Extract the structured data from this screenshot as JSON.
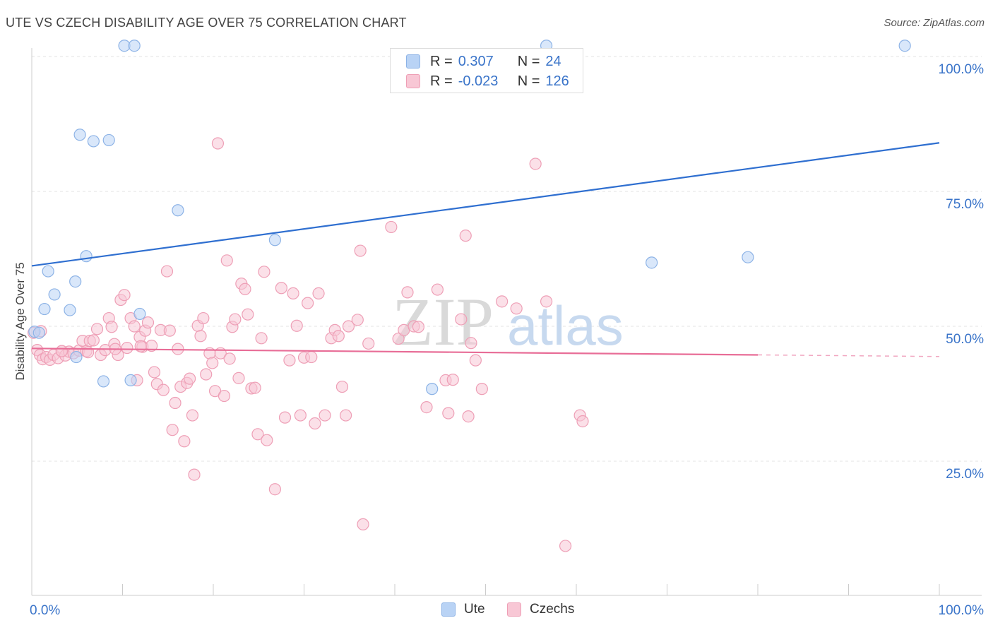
{
  "header": {
    "title": "UTE VS CZECH DISABILITY AGE OVER 75 CORRELATION CHART",
    "source": "Source: ZipAtlas.com"
  },
  "legend_top": {
    "r_label": "R =",
    "n_label": "N =",
    "ute": {
      "r": "0.307",
      "n": "24"
    },
    "czech": {
      "r": "-0.023",
      "n": "126"
    }
  },
  "legend_bottom": {
    "ute": "Ute",
    "czech": "Czechs"
  },
  "watermark": {
    "zip": "ZIP",
    "atlas": "atlas"
  },
  "colors": {
    "ute_fill": "#b9d3f5",
    "ute_stroke": "#8db3e6",
    "ute_line": "#2f6fd0",
    "czech_fill": "#f8c7d5",
    "czech_stroke": "#ee9fb6",
    "czech_line": "#e86d97",
    "axis_label": "#3a74c9",
    "grid": "#e3e3e3"
  },
  "chart_data": {
    "type": "scatter",
    "title": "UTE VS CZECH DISABILITY AGE OVER 75 CORRELATION CHART",
    "xlabel": "",
    "ylabel": "Disability Age Over 75",
    "xlim": [
      0,
      100
    ],
    "ylim": [
      0,
      102
    ],
    "x_tick_labels": [
      {
        "v": 0,
        "label": "0.0%"
      },
      {
        "v": 100,
        "label": "100.0%"
      }
    ],
    "y_tick_labels": [
      {
        "v": 25,
        "label": "25.0%"
      },
      {
        "v": 50,
        "label": "50.0%"
      },
      {
        "v": 75,
        "label": "75.0%"
      },
      {
        "v": 100,
        "label": "100.0%"
      }
    ],
    "grid": true,
    "series": [
      {
        "name": "Ute",
        "r": 0.307,
        "n": 24,
        "trend": {
          "x0": 0,
          "y0": 61.2,
          "x1": 100,
          "y1": 84.0
        },
        "points": [
          [
            10.2,
            102.0
          ],
          [
            11.3,
            102.0
          ],
          [
            56.7,
            102.0
          ],
          [
            96.2,
            102.0
          ],
          [
            5.3,
            85.5
          ],
          [
            6.8,
            84.3
          ],
          [
            8.5,
            84.5
          ],
          [
            16.1,
            71.5
          ],
          [
            26.8,
            66.0
          ],
          [
            6.0,
            63.0
          ],
          [
            1.8,
            60.2
          ],
          [
            4.8,
            58.3
          ],
          [
            2.5,
            55.9
          ],
          [
            1.4,
            53.2
          ],
          [
            4.2,
            53.0
          ],
          [
            11.9,
            52.3
          ],
          [
            0.3,
            49.0
          ],
          [
            0.8,
            48.8
          ],
          [
            4.9,
            44.3
          ],
          [
            7.9,
            39.8
          ],
          [
            10.9,
            40.0
          ],
          [
            44.1,
            38.4
          ],
          [
            68.3,
            61.8
          ],
          [
            78.9,
            62.8
          ]
        ]
      },
      {
        "name": "Czechs",
        "r": -0.023,
        "n": 126,
        "trend": {
          "x0": 0,
          "y0": 45.9,
          "x1": 80,
          "y1": 44.7
        },
        "trend_dashed": {
          "x0": 80,
          "y0": 44.7,
          "x1": 100,
          "y1": 44.4
        },
        "points": [
          [
            0.2,
            48.8
          ],
          [
            0.6,
            45.6
          ],
          [
            0.9,
            44.7
          ],
          [
            1.2,
            43.9
          ],
          [
            1.6,
            44.3
          ],
          [
            2.0,
            43.8
          ],
          [
            2.4,
            44.7
          ],
          [
            2.9,
            44.1
          ],
          [
            3.3,
            45.4
          ],
          [
            3.7,
            44.6
          ],
          [
            4.1,
            45.3
          ],
          [
            4.6,
            45.0
          ],
          [
            5.2,
            45.5
          ],
          [
            5.6,
            47.3
          ],
          [
            6.0,
            45.4
          ],
          [
            6.4,
            47.3
          ],
          [
            6.8,
            47.4
          ],
          [
            7.2,
            49.5
          ],
          [
            7.6,
            44.7
          ],
          [
            8.1,
            45.6
          ],
          [
            8.5,
            51.5
          ],
          [
            8.8,
            49.9
          ],
          [
            9.1,
            46.7
          ],
          [
            9.5,
            44.7
          ],
          [
            9.8,
            54.9
          ],
          [
            10.2,
            55.8
          ],
          [
            10.5,
            46.0
          ],
          [
            10.9,
            51.5
          ],
          [
            11.3,
            50.0
          ],
          [
            11.6,
            40.0
          ],
          [
            11.9,
            48.0
          ],
          [
            12.2,
            46.2
          ],
          [
            12.5,
            49.2
          ],
          [
            12.8,
            50.7
          ],
          [
            13.2,
            46.4
          ],
          [
            13.5,
            41.5
          ],
          [
            13.8,
            39.3
          ],
          [
            14.2,
            49.3
          ],
          [
            14.5,
            38.2
          ],
          [
            14.9,
            60.2
          ],
          [
            15.2,
            49.2
          ],
          [
            15.5,
            30.8
          ],
          [
            15.8,
            35.8
          ],
          [
            16.1,
            45.8
          ],
          [
            16.4,
            38.8
          ],
          [
            16.8,
            28.7
          ],
          [
            17.1,
            39.5
          ],
          [
            17.4,
            40.3
          ],
          [
            17.7,
            33.5
          ],
          [
            17.9,
            22.5
          ],
          [
            18.3,
            50.1
          ],
          [
            18.6,
            48.2
          ],
          [
            18.9,
            51.5
          ],
          [
            19.2,
            41.1
          ],
          [
            19.6,
            45.0
          ],
          [
            19.9,
            43.2
          ],
          [
            20.2,
            38.0
          ],
          [
            20.5,
            83.9
          ],
          [
            20.8,
            45.0
          ],
          [
            21.2,
            37.1
          ],
          [
            21.5,
            62.2
          ],
          [
            21.8,
            44.0
          ],
          [
            22.1,
            49.9
          ],
          [
            22.4,
            51.3
          ],
          [
            22.8,
            40.4
          ],
          [
            23.1,
            57.9
          ],
          [
            23.5,
            56.9
          ],
          [
            23.8,
            52.2
          ],
          [
            24.2,
            38.5
          ],
          [
            24.6,
            38.6
          ],
          [
            24.9,
            30.0
          ],
          [
            25.3,
            47.8
          ],
          [
            25.6,
            60.1
          ],
          [
            25.9,
            28.9
          ],
          [
            26.8,
            19.8
          ],
          [
            27.5,
            57.1
          ],
          [
            27.9,
            33.1
          ],
          [
            28.4,
            43.7
          ],
          [
            28.8,
            56.1
          ],
          [
            29.2,
            50.1
          ],
          [
            29.6,
            33.5
          ],
          [
            30.0,
            44.2
          ],
          [
            30.4,
            54.3
          ],
          [
            30.8,
            44.3
          ],
          [
            31.2,
            32.0
          ],
          [
            31.6,
            56.1
          ],
          [
            32.3,
            33.5
          ],
          [
            33.0,
            47.8
          ],
          [
            33.4,
            49.3
          ],
          [
            33.8,
            48.2
          ],
          [
            34.2,
            38.8
          ],
          [
            34.6,
            33.5
          ],
          [
            34.9,
            50.0
          ],
          [
            35.9,
            51.2
          ],
          [
            36.2,
            64.0
          ],
          [
            36.5,
            13.3
          ],
          [
            37.1,
            46.8
          ],
          [
            39.6,
            68.4
          ],
          [
            40.4,
            47.7
          ],
          [
            41.0,
            49.3
          ],
          [
            41.4,
            56.3
          ],
          [
            42.1,
            50.0
          ],
          [
            42.6,
            49.9
          ],
          [
            43.5,
            35.0
          ],
          [
            44.7,
            56.8
          ],
          [
            45.6,
            40.0
          ],
          [
            45.9,
            33.9
          ],
          [
            46.4,
            40.1
          ],
          [
            47.3,
            51.3
          ],
          [
            47.8,
            66.8
          ],
          [
            48.1,
            33.3
          ],
          [
            48.4,
            46.9
          ],
          [
            48.9,
            43.7
          ],
          [
            49.6,
            38.4
          ],
          [
            51.8,
            54.6
          ],
          [
            53.4,
            53.3
          ],
          [
            55.5,
            80.1
          ],
          [
            56.7,
            54.6
          ],
          [
            58.8,
            9.3
          ],
          [
            60.4,
            33.5
          ],
          [
            60.7,
            32.4
          ],
          [
            1.0,
            49.1
          ],
          [
            3.3,
            45.4
          ],
          [
            6.2,
            45.2
          ],
          [
            9.2,
            45.8
          ],
          [
            12.0,
            46.3
          ]
        ]
      }
    ]
  }
}
